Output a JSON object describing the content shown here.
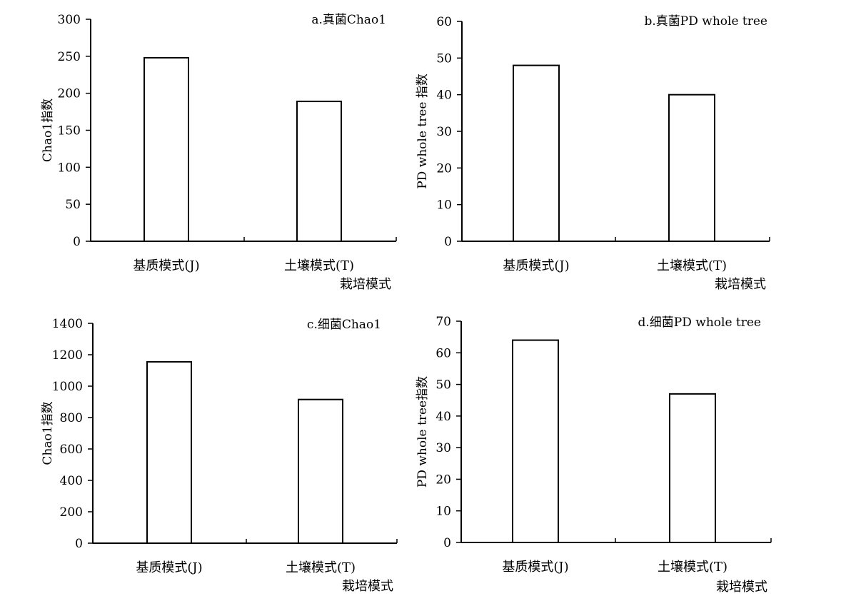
{
  "chart_data": [
    {
      "type": "bar",
      "title": "a.真菌Chao1",
      "ylabel": "Chao1指数",
      "xlabel": "栽培模式",
      "categories": [
        "基质模式(J)",
        "土壤模式(T)"
      ],
      "values": [
        248,
        189
      ],
      "ylim": [
        0,
        300
      ],
      "yticks": [
        0,
        50,
        100,
        150,
        200,
        250,
        300
      ],
      "grid": false,
      "legend": "none"
    },
    {
      "type": "bar",
      "title": "b.真菌PD whole tree",
      "ylabel": "PD whole tree 指数",
      "xlabel": "栽培模式",
      "categories": [
        "基质模式(J)",
        "土壤模式(T)"
      ],
      "values": [
        48,
        40
      ],
      "ylim": [
        0,
        60
      ],
      "yticks": [
        0,
        10,
        20,
        30,
        40,
        50,
        60
      ],
      "grid": false,
      "legend": "none"
    },
    {
      "type": "bar",
      "title": "c.细菌Chao1",
      "ylabel": "Chao1指数",
      "xlabel": "栽培模式",
      "categories": [
        "基质模式(J)",
        "土壤模式(T)"
      ],
      "values": [
        1155,
        915
      ],
      "ylim": [
        0,
        1400
      ],
      "yticks": [
        0,
        200,
        400,
        600,
        800,
        1000,
        1200,
        1400
      ],
      "grid": false,
      "legend": "none"
    },
    {
      "type": "bar",
      "title": "d.细菌PD whole tree",
      "ylabel": "PD whole tree指数",
      "xlabel": "栽培模式",
      "categories": [
        "基质模式(J)",
        "土壤模式(T)"
      ],
      "values": [
        64,
        47
      ],
      "ylim": [
        0,
        70
      ],
      "yticks": [
        0,
        10,
        20,
        30,
        40,
        50,
        60,
        70
      ],
      "grid": false,
      "legend": "none"
    }
  ]
}
